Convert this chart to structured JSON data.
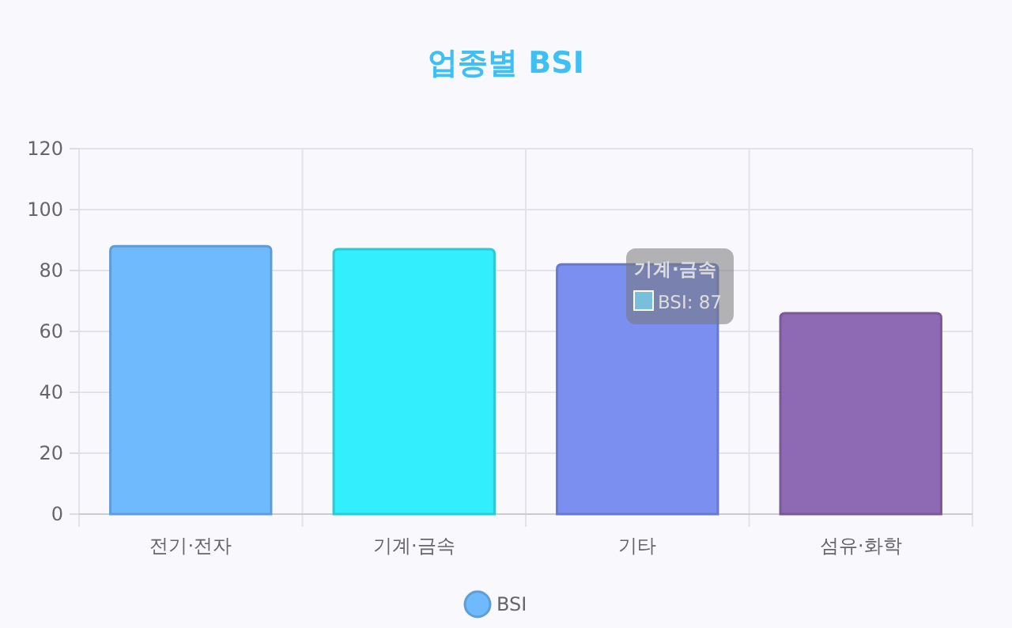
{
  "chart_data": {
    "type": "bar",
    "title": "업종별 BSI",
    "categories": [
      "전기·전자",
      "기계·금속",
      "기타",
      "섬유·화학"
    ],
    "series": [
      {
        "name": "BSI",
        "color": "#6fb9fd",
        "colors": [
          "#6fb9fd",
          "#33eefc",
          "#7a8ff0",
          "#8e6ab4"
        ],
        "values": [
          88,
          87,
          82,
          66
        ]
      }
    ],
    "ylim": [
      0,
      120
    ],
    "yticks": [
      0,
      20,
      40,
      60,
      80,
      100,
      120
    ],
    "grid": true,
    "legend": "bottom",
    "annotations": [
      "기계·금속",
      "BSI: 87"
    ]
  }
}
